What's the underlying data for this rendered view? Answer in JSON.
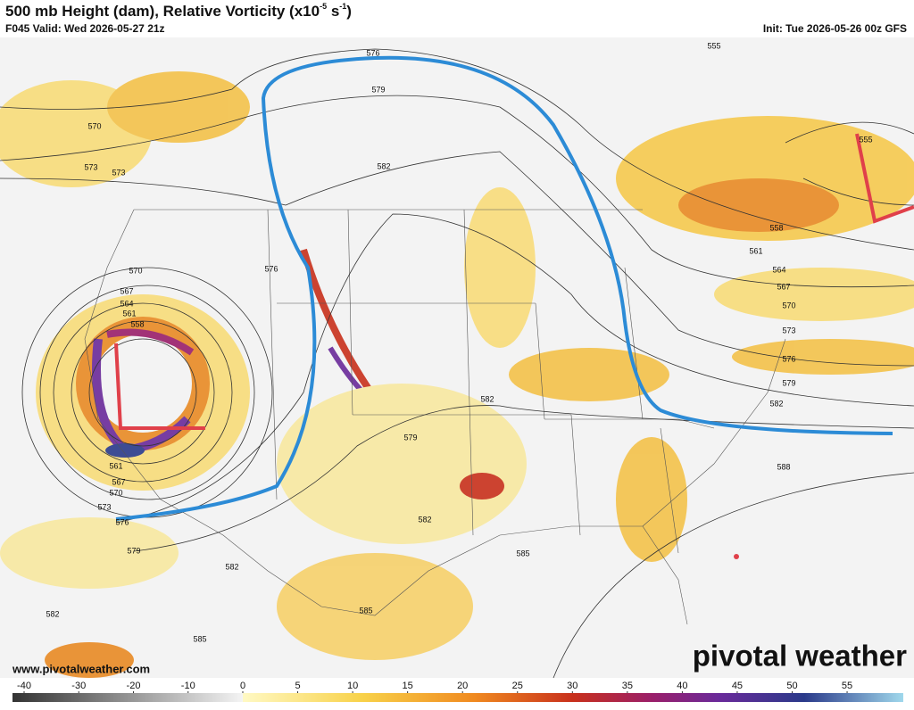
{
  "header": {
    "title": "500 mb Height (dam), Relative Vorticity (x10",
    "title_exp1": "-5",
    "title_unit": " s",
    "title_exp2": "-1",
    "title_end": ")",
    "valid": "F045 Valid: Wed 2026-05-27 21z",
    "init": "Init: Tue 2026-05-26 00z GFS"
  },
  "footer": {
    "url": "www.pivotalweather.com",
    "logo": "pivotal weather"
  },
  "colorbar": {
    "ticks": [
      -40,
      -30,
      -20,
      -10,
      0,
      5,
      10,
      15,
      20,
      25,
      30,
      35,
      40,
      45,
      50,
      55
    ]
  },
  "contour_labels": [
    555,
    555,
    558,
    561,
    564,
    567,
    570,
    573,
    576,
    579,
    582,
    588,
    585,
    582,
    579,
    582,
    585,
    585,
    582,
    582,
    579,
    576,
    573,
    570,
    567,
    561,
    576,
    570,
    567,
    564,
    561,
    558,
    573,
    573,
    570,
    576,
    579,
    582
  ]
}
